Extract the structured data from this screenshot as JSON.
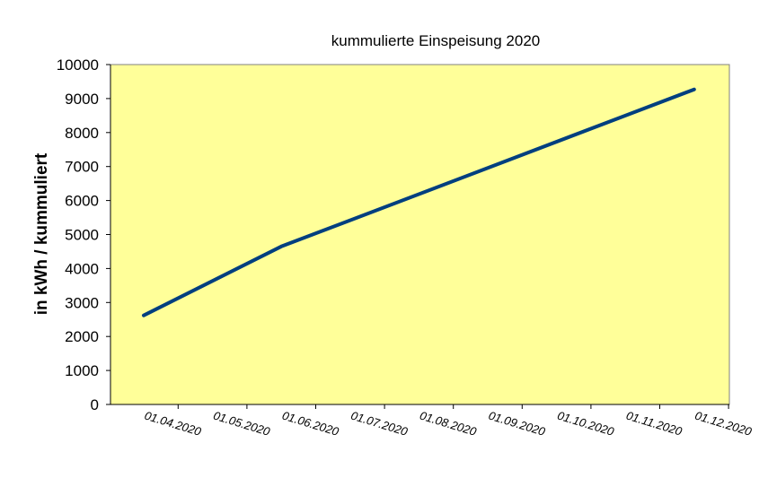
{
  "chart_data": {
    "type": "line",
    "title": "kummulierte Einspeisung 2020",
    "xlabel": "",
    "ylabel": "in kWh / kummuliert",
    "ylim": [
      0,
      10000
    ],
    "yticks": [
      0,
      1000,
      2000,
      3000,
      4000,
      5000,
      6000,
      7000,
      8000,
      9000,
      10000
    ],
    "categories": [
      "01.04.2020",
      "01.05.2020",
      "01.06.2020",
      "01.07.2020",
      "01.08.2020",
      "01.09.2020",
      "01.10.2020",
      "01.11.2020",
      "01.12.2020"
    ],
    "series": [
      {
        "name": "",
        "x": [
          "01.04.2020",
          "01.06.2020",
          "01.12.2020"
        ],
        "values": [
          2620,
          4650,
          9270
        ]
      }
    ],
    "grid": false,
    "legend": "none",
    "colors": {
      "plot_background": "#FFFF99",
      "line": "#003F7F",
      "axis": "#808080"
    }
  }
}
